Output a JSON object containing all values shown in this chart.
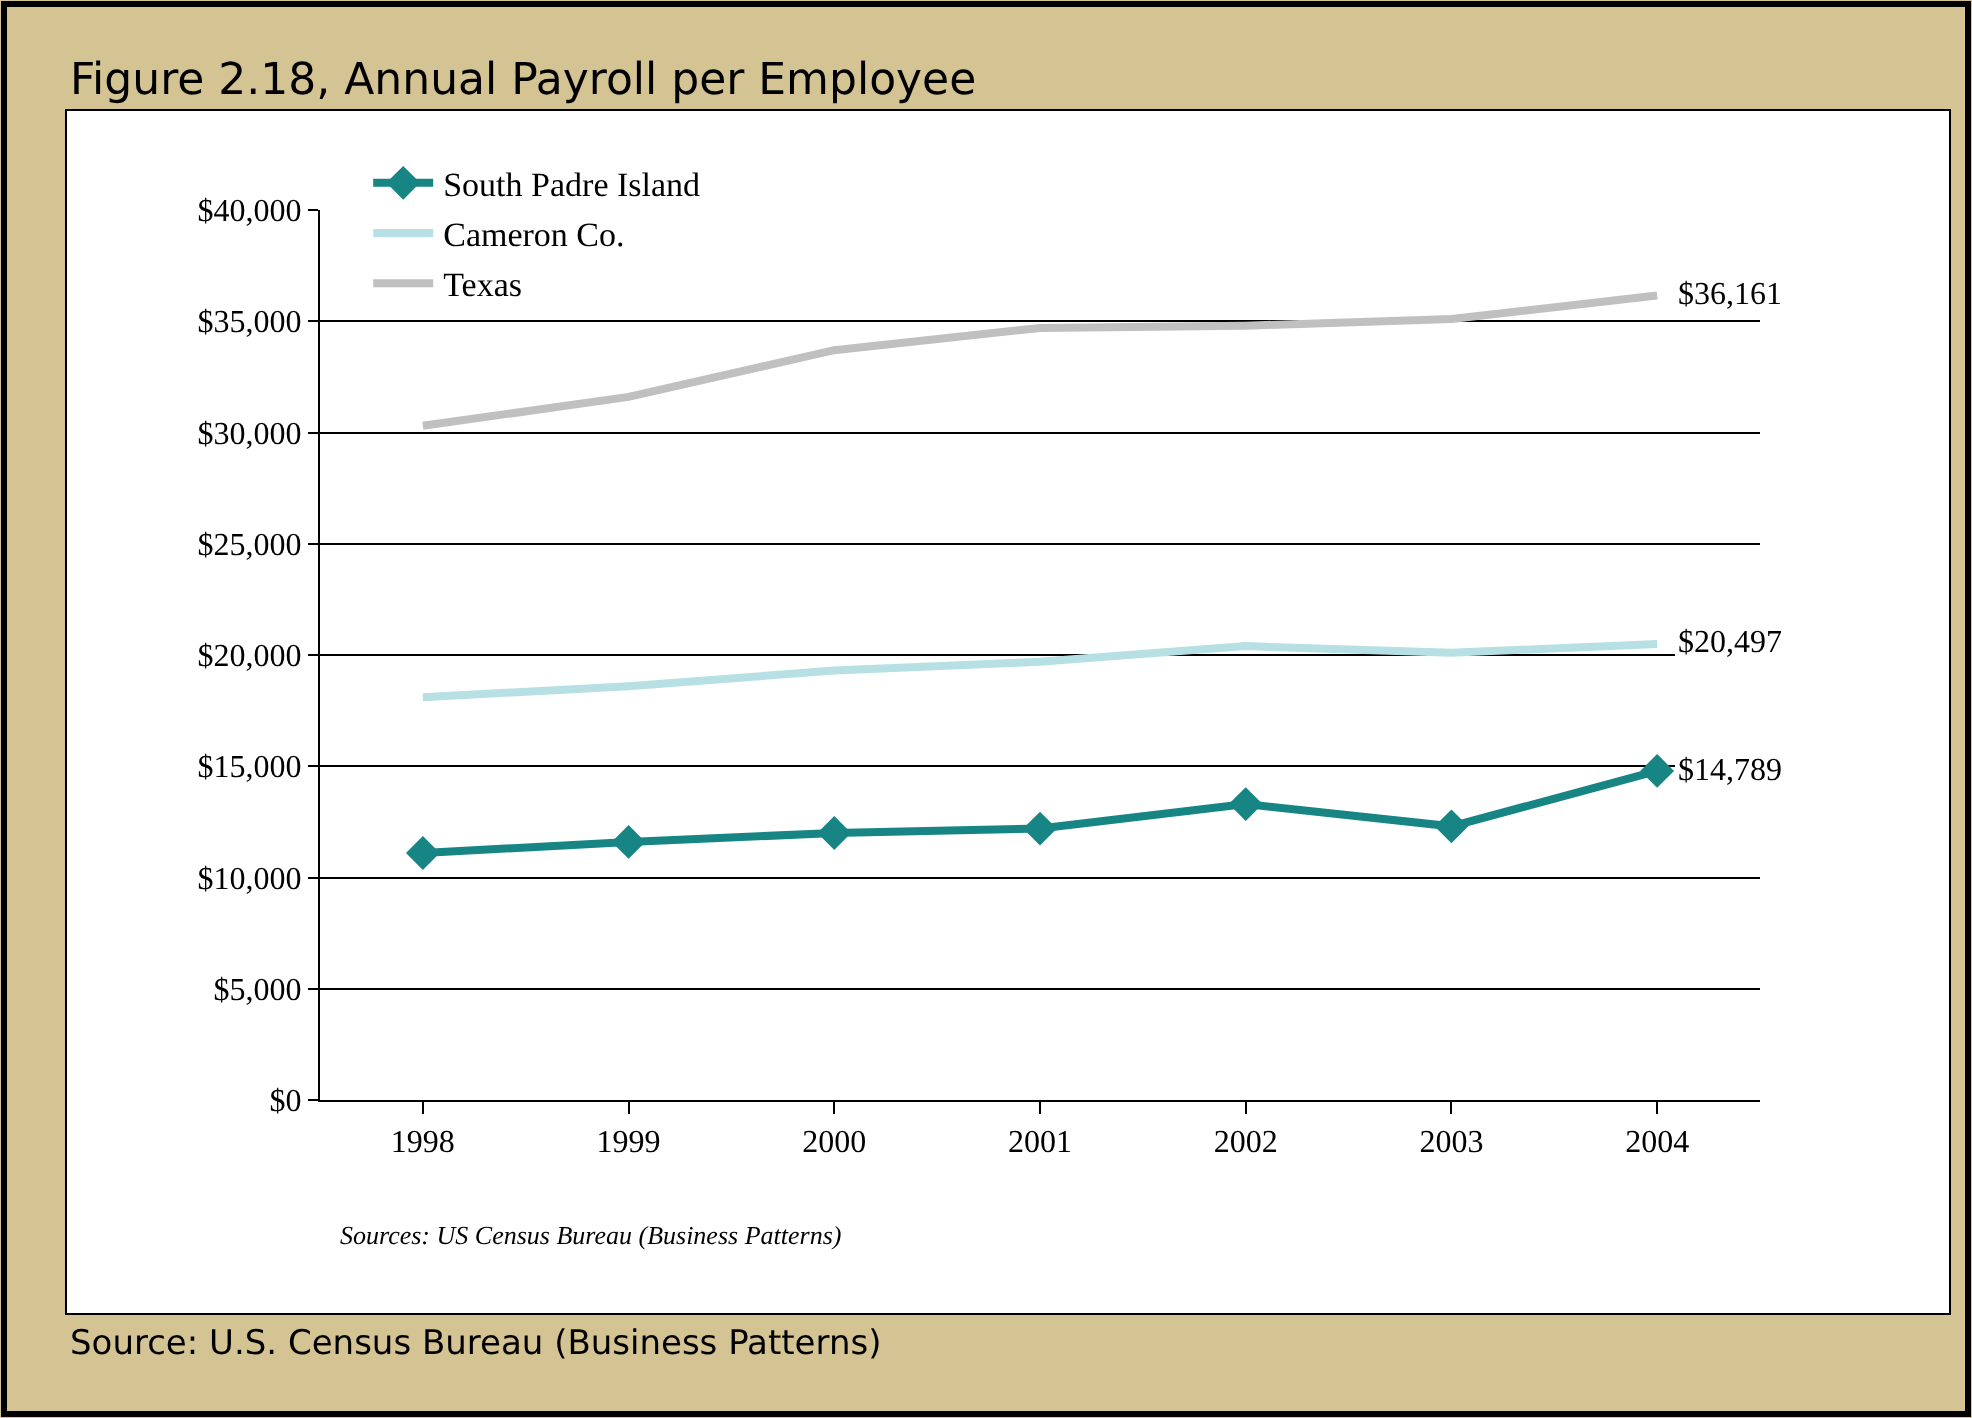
{
  "chart_data": {
    "type": "line",
    "title": "Figure 2.18, Annual Payroll per Employee",
    "categories": [
      "1998",
      "1999",
      "2000",
      "2001",
      "2002",
      "2003",
      "2004"
    ],
    "series": [
      {
        "name": "South Padre Island",
        "color": "#168584",
        "marker": "diamond",
        "values": [
          11100,
          11600,
          12000,
          12200,
          13300,
          12300,
          14789
        ],
        "value_labels": [
          null,
          null,
          null,
          null,
          null,
          null,
          "$14,789"
        ]
      },
      {
        "name": "Cameron Co.",
        "color": "#b7e0e4",
        "marker": "none",
        "values": [
          18100,
          18600,
          19300,
          19700,
          20400,
          20100,
          20497
        ],
        "value_labels": [
          null,
          null,
          null,
          null,
          null,
          null,
          "$20,497"
        ]
      },
      {
        "name": "Texas",
        "color": "#c0c0c0",
        "marker": "none",
        "values": [
          30300,
          31600,
          33700,
          34700,
          34800,
          35100,
          36161
        ],
        "value_labels": [
          null,
          null,
          null,
          null,
          null,
          null,
          "$36,161"
        ]
      }
    ],
    "ylim": [
      0,
      40000
    ],
    "yticks": [
      {
        "value": 0,
        "label": "$0"
      },
      {
        "value": 5000,
        "label": "$5,000"
      },
      {
        "value": 10000,
        "label": "$10,000"
      },
      {
        "value": 15000,
        "label": "$15,000"
      },
      {
        "value": 20000,
        "label": "$20,000"
      },
      {
        "value": 25000,
        "label": "$25,000"
      },
      {
        "value": 30000,
        "label": "$30,000"
      },
      {
        "value": 35000,
        "label": "$35,000"
      },
      {
        "value": 40000,
        "label": "$40,000"
      }
    ],
    "grid": "y",
    "legend": "top left",
    "annotations": [
      "Sources: US Census Bureau (Business Patterns)",
      "Source: U.S. Census Bureau (Business Patterns)"
    ]
  }
}
